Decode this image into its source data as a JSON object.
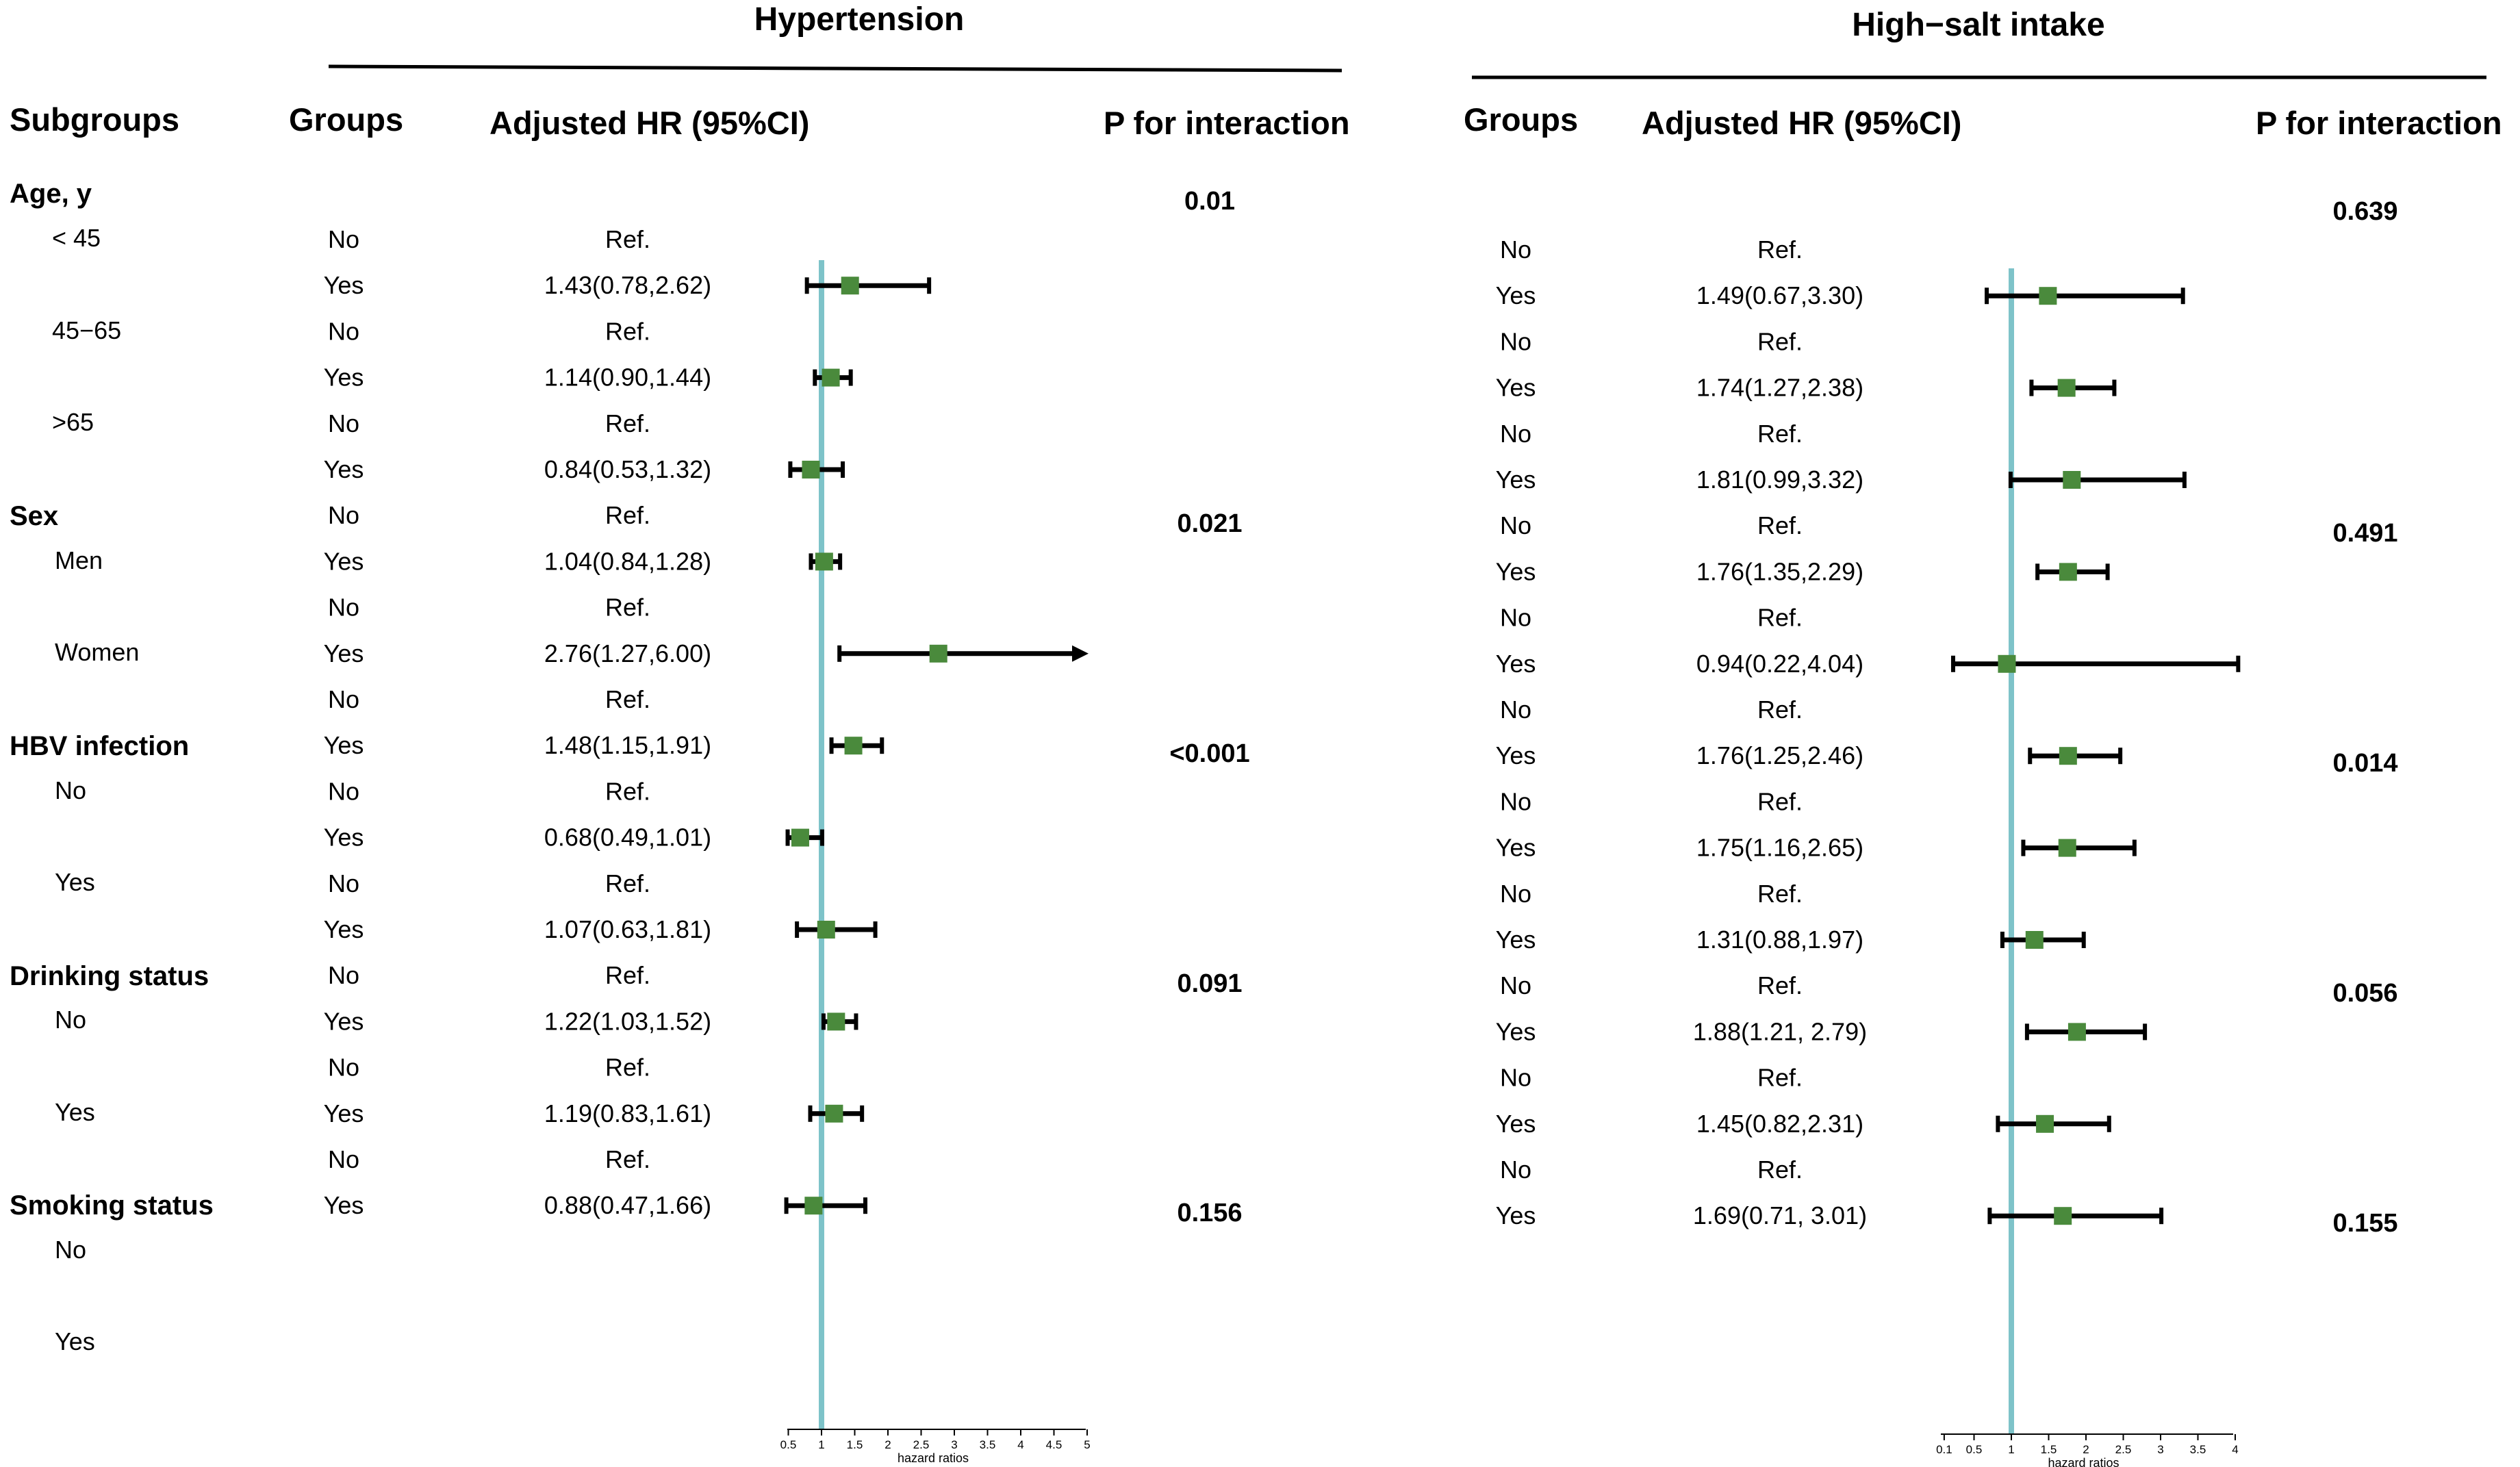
{
  "chart_data": {
    "type": "forest",
    "headers": {
      "subgroups": "Subgroups",
      "groups": "Groups",
      "hr": "Adjusted HR (95%CI)",
      "p": "P for interaction"
    },
    "subgroups": [
      {
        "label": "Age, y",
        "levels": [
          "< 45",
          "45−65",
          ">65"
        ]
      },
      {
        "label": "Sex",
        "levels": [
          "Men",
          "Women"
        ]
      },
      {
        "label": "HBV infection",
        "levels": [
          "No",
          "Yes"
        ]
      },
      {
        "label": "Drinking status",
        "levels": [
          "No",
          "Yes"
        ]
      },
      {
        "label": "Smoking status",
        "levels": [
          "No",
          "Yes"
        ]
      }
    ],
    "panels": [
      {
        "title": "Hypertension",
        "xlabel": "hazard ratios",
        "ticks": [
          "0.5",
          "1",
          "1.5",
          "2",
          "2.5",
          "3",
          "3.5",
          "4",
          "4.5",
          "5"
        ],
        "tick_values": [
          0.5,
          1,
          1.5,
          2,
          2.5,
          3,
          3.5,
          4,
          4.5,
          5
        ],
        "xlim": [
          0.5,
          5
        ],
        "reference_line": 1,
        "p_values": [
          "0.01",
          "0.021",
          "<0.001",
          "0.091",
          "0.156"
        ],
        "rows": [
          {
            "group": "No",
            "label": "Ref."
          },
          {
            "group": "Yes",
            "label": "1.43(0.78,2.62)",
            "hr": 1.43,
            "lo": 0.78,
            "hi": 2.62
          },
          {
            "group": "No",
            "label": "Ref."
          },
          {
            "group": "Yes",
            "label": "1.14(0.90,1.44)",
            "hr": 1.14,
            "lo": 0.9,
            "hi": 1.44
          },
          {
            "group": "No",
            "label": "Ref."
          },
          {
            "group": "Yes",
            "label": "0.84(0.53,1.32)",
            "hr": 0.84,
            "lo": 0.53,
            "hi": 1.32
          },
          {
            "group": "No",
            "label": "Ref."
          },
          {
            "group": "Yes",
            "label": "1.04(0.84,1.28)",
            "hr": 1.04,
            "lo": 0.84,
            "hi": 1.28
          },
          {
            "group": "No",
            "label": "Ref."
          },
          {
            "group": "Yes",
            "label": "2.76(1.27,6.00)",
            "hr": 2.76,
            "lo": 1.27,
            "hi": 6.0,
            "arrow": true
          },
          {
            "group": "No",
            "label": "Ref."
          },
          {
            "group": "Yes",
            "label": "1.48(1.15,1.91)",
            "hr": 1.48,
            "lo": 1.15,
            "hi": 1.91
          },
          {
            "group": "No",
            "label": "Ref."
          },
          {
            "group": "Yes",
            "label": "0.68(0.49,1.01)",
            "hr": 0.68,
            "lo": 0.49,
            "hi": 1.01
          },
          {
            "group": "No",
            "label": "Ref."
          },
          {
            "group": "Yes",
            "label": "1.07(0.63,1.81)",
            "hr": 1.07,
            "lo": 0.63,
            "hi": 1.81
          },
          {
            "group": "No",
            "label": "Ref."
          },
          {
            "group": "Yes",
            "label": "1.22(1.03,1.52)",
            "hr": 1.22,
            "lo": 1.03,
            "hi": 1.52
          },
          {
            "group": "No",
            "label": "Ref."
          },
          {
            "group": "Yes",
            "label": "1.19(0.83,1.61)",
            "hr": 1.19,
            "lo": 0.83,
            "hi": 1.61
          },
          {
            "group": "No",
            "label": "Ref."
          },
          {
            "group": "Yes",
            "label": "0.88(0.47,1.66)",
            "hr": 0.88,
            "lo": 0.47,
            "hi": 1.66
          }
        ]
      },
      {
        "title": "High−salt intake",
        "xlabel": "hazard ratios",
        "ticks": [
          "0.1",
          "0.5",
          "1",
          "1.5",
          "2",
          "2.5",
          "3",
          "3.5",
          "4"
        ],
        "tick_values": [
          0.1,
          0.5,
          1,
          1.5,
          2,
          2.5,
          3,
          3.5,
          4
        ],
        "xlim": [
          0.1,
          4
        ],
        "reference_line": 1,
        "p_values": [
          "0.639",
          "0.491",
          "0.014",
          "0.056",
          "0.155"
        ],
        "rows": [
          {
            "group": "No",
            "label": "Ref."
          },
          {
            "group": "Yes",
            "label": "1.49(0.67,3.30)",
            "hr": 1.49,
            "lo": 0.67,
            "hi": 3.3
          },
          {
            "group": "No",
            "label": "Ref."
          },
          {
            "group": "Yes",
            "label": "1.74(1.27,2.38)",
            "hr": 1.74,
            "lo": 1.27,
            "hi": 2.38
          },
          {
            "group": "No",
            "label": "Ref."
          },
          {
            "group": "Yes",
            "label": "1.81(0.99,3.32)",
            "hr": 1.81,
            "lo": 0.99,
            "hi": 3.32
          },
          {
            "group": "No",
            "label": "Ref."
          },
          {
            "group": "Yes",
            "label": "1.76(1.35,2.29)",
            "hr": 1.76,
            "lo": 1.35,
            "hi": 2.29
          },
          {
            "group": "No",
            "label": "Ref."
          },
          {
            "group": "Yes",
            "label": "0.94(0.22,4.04)",
            "hr": 0.94,
            "lo": 0.22,
            "hi": 4.04
          },
          {
            "group": "No",
            "label": "Ref."
          },
          {
            "group": "Yes",
            "label": "1.76(1.25,2.46)",
            "hr": 1.76,
            "lo": 1.25,
            "hi": 2.46
          },
          {
            "group": "No",
            "label": "Ref."
          },
          {
            "group": "Yes",
            "label": "1.75(1.16,2.65)",
            "hr": 1.75,
            "lo": 1.16,
            "hi": 2.65
          },
          {
            "group": "No",
            "label": "Ref."
          },
          {
            "group": "Yes",
            "label": "1.31(0.88,1.97)",
            "hr": 1.31,
            "lo": 0.88,
            "hi": 1.97
          },
          {
            "group": "No",
            "label": "Ref."
          },
          {
            "group": "Yes",
            "label": "1.88(1.21, 2.79)",
            "hr": 1.88,
            "lo": 1.21,
            "hi": 2.79
          },
          {
            "group": "No",
            "label": "Ref."
          },
          {
            "group": "Yes",
            "label": "1.45(0.82,2.31)",
            "hr": 1.45,
            "lo": 0.82,
            "hi": 2.31
          },
          {
            "group": "No",
            "label": "Ref."
          },
          {
            "group": "Yes",
            "label": "1.69(0.71, 3.01)",
            "hr": 1.69,
            "lo": 0.71,
            "hi": 3.01
          }
        ]
      }
    ],
    "colors": {
      "reference_line": "#7ec3c9",
      "marker": "#4a8a3c",
      "ci_line": "#000000"
    }
  }
}
